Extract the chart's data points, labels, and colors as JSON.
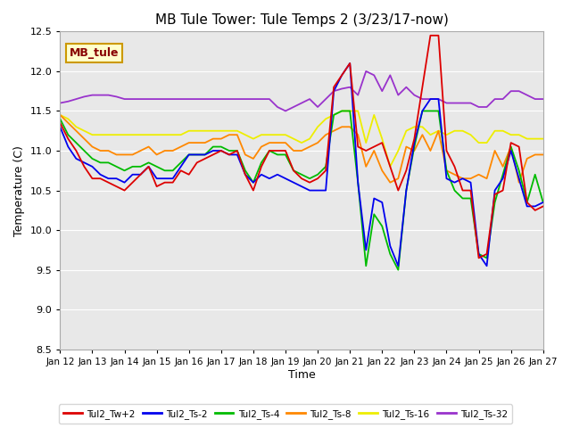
{
  "title": "MB Tule Tower: Tule Temps 2 (3/23/17-now)",
  "xlabel": "Time",
  "ylabel": "Temperature (C)",
  "ylim": [
    8.5,
    12.5
  ],
  "xlim": [
    0,
    15
  ],
  "x_tick_labels": [
    "Jan 12",
    "Jan 13",
    "Jan 14",
    "Jan 15",
    "Jan 16",
    "Jan 17",
    "Jan 18",
    "Jan 19",
    "Jan 20",
    "Jan 21",
    "Jan 22",
    "Jan 23",
    "Jan 24",
    "Jan 25",
    "Jan 26",
    "Jan 27"
  ],
  "plot_bg_color": "#e8e8e8",
  "legend_label": "MB_tule",
  "legend_bg": "#ffffcc",
  "legend_border": "#cc9900",
  "series": {
    "Tul2_Tw+2": {
      "color": "#dd0000",
      "x": [
        0.0,
        0.25,
        0.5,
        0.75,
        1.0,
        1.25,
        1.5,
        1.75,
        2.0,
        2.25,
        2.5,
        2.75,
        3.0,
        3.25,
        3.5,
        3.75,
        4.0,
        4.25,
        4.5,
        4.75,
        5.0,
        5.25,
        5.5,
        5.75,
        6.0,
        6.25,
        6.5,
        6.75,
        7.0,
        7.25,
        7.5,
        7.75,
        8.0,
        8.25,
        8.5,
        8.75,
        9.0,
        9.25,
        9.5,
        9.75,
        10.0,
        10.25,
        10.5,
        10.75,
        11.0,
        11.25,
        11.5,
        11.75,
        12.0,
        12.25,
        12.5,
        12.75,
        13.0,
        13.25,
        13.5,
        13.75,
        14.0,
        14.25,
        14.5,
        14.75,
        15.0
      ],
      "y": [
        11.35,
        11.15,
        11.0,
        10.8,
        10.65,
        10.65,
        10.6,
        10.55,
        10.5,
        10.6,
        10.7,
        10.8,
        10.55,
        10.6,
        10.6,
        10.75,
        10.7,
        10.85,
        10.9,
        10.95,
        11.0,
        10.95,
        11.0,
        10.7,
        10.5,
        10.8,
        11.0,
        11.0,
        11.0,
        10.75,
        10.65,
        10.6,
        10.65,
        10.75,
        11.8,
        11.95,
        12.1,
        11.05,
        11.0,
        11.05,
        11.1,
        10.8,
        10.5,
        10.75,
        11.15,
        11.8,
        12.45,
        12.45,
        11.0,
        10.8,
        10.5,
        10.5,
        9.65,
        9.7,
        10.45,
        10.5,
        11.1,
        11.05,
        10.35,
        10.25,
        10.3
      ]
    },
    "Tul2_Ts-2": {
      "color": "#0000ee",
      "x": [
        0.0,
        0.25,
        0.5,
        0.75,
        1.0,
        1.25,
        1.5,
        1.75,
        2.0,
        2.25,
        2.5,
        2.75,
        3.0,
        3.25,
        3.5,
        3.75,
        4.0,
        4.25,
        4.5,
        4.75,
        5.0,
        5.25,
        5.5,
        5.75,
        6.0,
        6.25,
        6.5,
        6.75,
        7.0,
        7.25,
        7.5,
        7.75,
        8.0,
        8.25,
        8.5,
        8.75,
        9.0,
        9.25,
        9.5,
        9.75,
        10.0,
        10.25,
        10.5,
        10.75,
        11.0,
        11.25,
        11.5,
        11.75,
        12.0,
        12.25,
        12.5,
        12.75,
        13.0,
        13.25,
        13.5,
        13.75,
        14.0,
        14.25,
        14.5,
        14.75,
        15.0
      ],
      "y": [
        11.3,
        11.05,
        10.9,
        10.85,
        10.8,
        10.7,
        10.65,
        10.65,
        10.6,
        10.7,
        10.7,
        10.8,
        10.65,
        10.65,
        10.65,
        10.8,
        10.95,
        10.95,
        10.95,
        11.0,
        11.0,
        10.95,
        10.95,
        10.7,
        10.6,
        10.7,
        10.65,
        10.7,
        10.65,
        10.6,
        10.55,
        10.5,
        10.5,
        10.5,
        11.75,
        11.95,
        12.1,
        10.6,
        9.75,
        10.4,
        10.35,
        9.8,
        9.55,
        10.5,
        11.1,
        11.5,
        11.65,
        11.65,
        10.65,
        10.6,
        10.65,
        10.6,
        9.7,
        9.55,
        10.5,
        10.65,
        11.0,
        10.65,
        10.3,
        10.3,
        10.35
      ]
    },
    "Tul2_Ts-4": {
      "color": "#00bb00",
      "x": [
        0.0,
        0.25,
        0.5,
        0.75,
        1.0,
        1.25,
        1.5,
        1.75,
        2.0,
        2.25,
        2.5,
        2.75,
        3.0,
        3.25,
        3.5,
        3.75,
        4.0,
        4.25,
        4.5,
        4.75,
        5.0,
        5.25,
        5.5,
        5.75,
        6.0,
        6.25,
        6.5,
        6.75,
        7.0,
        7.25,
        7.5,
        7.75,
        8.0,
        8.25,
        8.5,
        8.75,
        9.0,
        9.25,
        9.5,
        9.75,
        10.0,
        10.25,
        10.5,
        10.75,
        11.0,
        11.25,
        11.5,
        11.75,
        12.0,
        12.25,
        12.5,
        12.75,
        13.0,
        13.25,
        13.5,
        13.75,
        14.0,
        14.25,
        14.5,
        14.75,
        15.0
      ],
      "y": [
        11.4,
        11.2,
        11.1,
        11.0,
        10.9,
        10.85,
        10.85,
        10.8,
        10.75,
        10.8,
        10.8,
        10.85,
        10.8,
        10.75,
        10.75,
        10.85,
        10.95,
        10.95,
        10.95,
        11.05,
        11.05,
        11.0,
        11.0,
        10.75,
        10.6,
        10.85,
        11.0,
        10.95,
        10.95,
        10.75,
        10.7,
        10.65,
        10.7,
        10.8,
        11.45,
        11.5,
        11.5,
        10.6,
        9.55,
        10.2,
        10.05,
        9.7,
        9.5,
        10.5,
        11.05,
        11.5,
        11.5,
        11.5,
        10.75,
        10.5,
        10.4,
        10.4,
        9.7,
        9.65,
        10.35,
        10.7,
        11.05,
        10.75,
        10.35,
        10.7,
        10.35
      ]
    },
    "Tul2_Ts-8": {
      "color": "#ff8800",
      "x": [
        0.0,
        0.25,
        0.5,
        0.75,
        1.0,
        1.25,
        1.5,
        1.75,
        2.0,
        2.25,
        2.5,
        2.75,
        3.0,
        3.25,
        3.5,
        3.75,
        4.0,
        4.25,
        4.5,
        4.75,
        5.0,
        5.25,
        5.5,
        5.75,
        6.0,
        6.25,
        6.5,
        6.75,
        7.0,
        7.25,
        7.5,
        7.75,
        8.0,
        8.25,
        8.5,
        8.75,
        9.0,
        9.25,
        9.5,
        9.75,
        10.0,
        10.25,
        10.5,
        10.75,
        11.0,
        11.25,
        11.5,
        11.75,
        12.0,
        12.25,
        12.5,
        12.75,
        13.0,
        13.25,
        13.5,
        13.75,
        14.0,
        14.25,
        14.5,
        14.75,
        15.0
      ],
      "y": [
        11.45,
        11.35,
        11.25,
        11.15,
        11.05,
        11.0,
        11.0,
        10.95,
        10.95,
        10.95,
        11.0,
        11.05,
        10.95,
        11.0,
        11.0,
        11.05,
        11.1,
        11.1,
        11.1,
        11.15,
        11.15,
        11.2,
        11.2,
        10.95,
        10.9,
        11.05,
        11.1,
        11.1,
        11.1,
        11.0,
        11.0,
        11.05,
        11.1,
        11.2,
        11.25,
        11.3,
        11.3,
        11.2,
        10.8,
        11.0,
        10.75,
        10.6,
        10.65,
        11.05,
        11.0,
        11.2,
        11.0,
        11.25,
        10.75,
        10.7,
        10.65,
        10.65,
        10.7,
        10.65,
        11.0,
        10.8,
        11.05,
        10.6,
        10.9,
        10.95,
        10.95
      ]
    },
    "Tul2_Ts-16": {
      "color": "#eeee00",
      "x": [
        0.0,
        0.25,
        0.5,
        0.75,
        1.0,
        1.25,
        1.5,
        1.75,
        2.0,
        2.25,
        2.5,
        2.75,
        3.0,
        3.25,
        3.5,
        3.75,
        4.0,
        4.25,
        4.5,
        4.75,
        5.0,
        5.25,
        5.5,
        5.75,
        6.0,
        6.25,
        6.5,
        6.75,
        7.0,
        7.25,
        7.5,
        7.75,
        8.0,
        8.25,
        8.5,
        8.75,
        9.0,
        9.25,
        9.5,
        9.75,
        10.0,
        10.25,
        10.5,
        10.75,
        11.0,
        11.25,
        11.5,
        11.75,
        12.0,
        12.25,
        12.5,
        12.75,
        13.0,
        13.25,
        13.5,
        13.75,
        14.0,
        14.25,
        14.5,
        14.75,
        15.0
      ],
      "y": [
        11.45,
        11.4,
        11.3,
        11.25,
        11.2,
        11.2,
        11.2,
        11.2,
        11.2,
        11.2,
        11.2,
        11.2,
        11.2,
        11.2,
        11.2,
        11.2,
        11.25,
        11.25,
        11.25,
        11.25,
        11.25,
        11.25,
        11.25,
        11.2,
        11.15,
        11.2,
        11.2,
        11.2,
        11.2,
        11.15,
        11.1,
        11.15,
        11.3,
        11.4,
        11.45,
        11.5,
        11.5,
        11.5,
        11.1,
        11.45,
        11.15,
        10.8,
        11.0,
        11.25,
        11.3,
        11.3,
        11.2,
        11.25,
        11.2,
        11.25,
        11.25,
        11.2,
        11.1,
        11.1,
        11.25,
        11.25,
        11.2,
        11.2,
        11.15,
        11.15,
        11.15
      ]
    },
    "Tul2_Ts-32": {
      "color": "#9933cc",
      "x": [
        0.0,
        0.25,
        0.5,
        0.75,
        1.0,
        1.25,
        1.5,
        1.75,
        2.0,
        2.25,
        2.5,
        2.75,
        3.0,
        3.25,
        3.5,
        3.75,
        4.0,
        4.25,
        4.5,
        4.75,
        5.0,
        5.25,
        5.5,
        5.75,
        6.0,
        6.25,
        6.5,
        6.75,
        7.0,
        7.25,
        7.5,
        7.75,
        8.0,
        8.25,
        8.5,
        8.75,
        9.0,
        9.25,
        9.5,
        9.75,
        10.0,
        10.25,
        10.5,
        10.75,
        11.0,
        11.25,
        11.5,
        11.75,
        12.0,
        12.25,
        12.5,
        12.75,
        13.0,
        13.25,
        13.5,
        13.75,
        14.0,
        14.25,
        14.5,
        14.75,
        15.0
      ],
      "y": [
        11.6,
        11.62,
        11.65,
        11.68,
        11.7,
        11.7,
        11.7,
        11.68,
        11.65,
        11.65,
        11.65,
        11.65,
        11.65,
        11.65,
        11.65,
        11.65,
        11.65,
        11.65,
        11.65,
        11.65,
        11.65,
        11.65,
        11.65,
        11.65,
        11.65,
        11.65,
        11.65,
        11.55,
        11.5,
        11.55,
        11.6,
        11.65,
        11.55,
        11.65,
        11.75,
        11.78,
        11.8,
        11.7,
        12.0,
        11.95,
        11.75,
        11.95,
        11.7,
        11.8,
        11.7,
        11.65,
        11.65,
        11.65,
        11.6,
        11.6,
        11.6,
        11.6,
        11.55,
        11.55,
        11.65,
        11.65,
        11.75,
        11.75,
        11.7,
        11.65,
        11.65
      ]
    }
  }
}
